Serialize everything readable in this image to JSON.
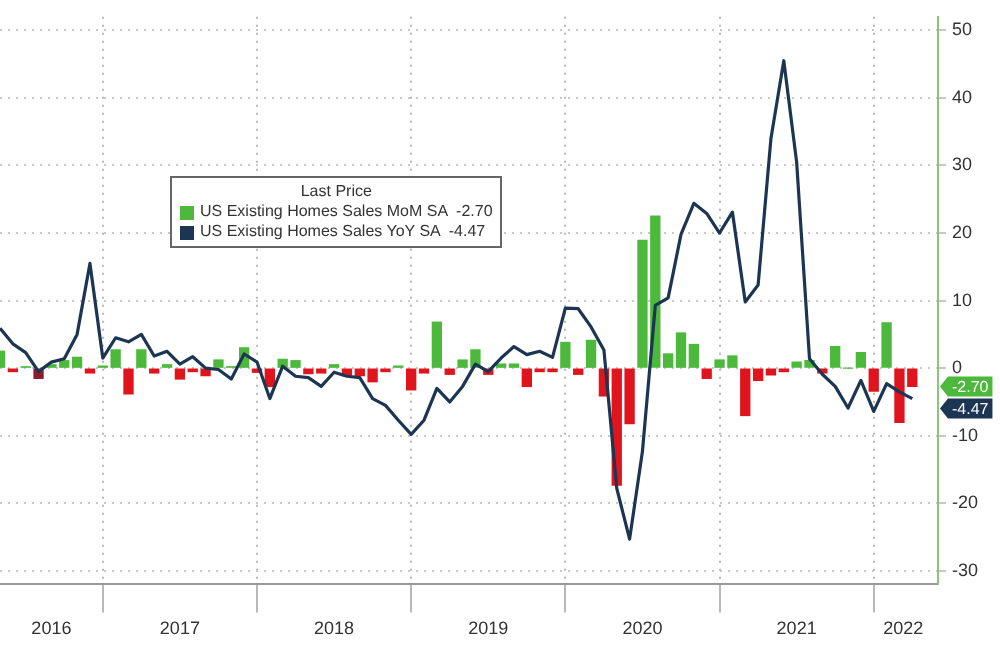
{
  "chart_data": {
    "type": "bar",
    "legend_title": "Last Price",
    "x": [
      "2016-05",
      "2016-06",
      "2016-07",
      "2016-08",
      "2016-09",
      "2016-10",
      "2016-11",
      "2016-12",
      "2017-01",
      "2017-02",
      "2017-03",
      "2017-04",
      "2017-05",
      "2017-06",
      "2017-07",
      "2017-08",
      "2017-09",
      "2017-10",
      "2017-11",
      "2017-12",
      "2018-01",
      "2018-02",
      "2018-03",
      "2018-04",
      "2018-05",
      "2018-06",
      "2018-07",
      "2018-08",
      "2018-09",
      "2018-10",
      "2018-11",
      "2018-12",
      "2019-01",
      "2019-02",
      "2019-03",
      "2019-04",
      "2019-05",
      "2019-06",
      "2019-07",
      "2019-08",
      "2019-09",
      "2019-10",
      "2019-11",
      "2019-12",
      "2020-01",
      "2020-02",
      "2020-03",
      "2020-04",
      "2020-05",
      "2020-06",
      "2020-07",
      "2020-08",
      "2020-09",
      "2020-10",
      "2020-11",
      "2020-12",
      "2021-01",
      "2021-02",
      "2021-03",
      "2021-04",
      "2021-05",
      "2021-06",
      "2021-07",
      "2021-08",
      "2021-09",
      "2021-10",
      "2021-11",
      "2021-12",
      "2022-01",
      "2022-02",
      "2022-03",
      "2022-04"
    ],
    "series": [
      {
        "name": "US Existing Homes Sales MoM SA  -2.70",
        "color": "#4cb83c",
        "colors": [
          "#4cb83c",
          "#e0141c",
          "#4cb83c",
          "#8a1c2c",
          "#4cb83c",
          "#4cb83c",
          "#4cb83c",
          "#e0141c",
          "#4cb83c",
          "#4cb83c",
          "#e0141c",
          "#4cb83c",
          "#e0141c",
          "#4cb83c",
          "#e0141c",
          "#e0141c",
          "#e0141c",
          "#4cb83c",
          "#4cb83c",
          "#4cb83c",
          "#e0141c",
          "#e0141c",
          "#4cb83c",
          "#4cb83c",
          "#e0141c",
          "#e0141c",
          "#4cb83c",
          "#e0141c",
          "#e0141c",
          "#e0141c",
          "#e0141c",
          "#4cb83c",
          "#e0141c",
          "#e0141c",
          "#4cb83c",
          "#e0141c",
          "#4cb83c",
          "#4cb83c",
          "#e0141c",
          "#4cb83c",
          "#4cb83c",
          "#e0141c",
          "#e0141c",
          "#e0141c",
          "#4cb83c",
          "#e0141c",
          "#4cb83c",
          "#e0141c",
          "#e0141c",
          "#e0141c",
          "#4cb83c",
          "#4cb83c",
          "#4cb83c",
          "#4cb83c",
          "#4cb83c",
          "#e0141c",
          "#4cb83c",
          "#4cb83c",
          "#e0141c",
          "#e0141c",
          "#e0141c",
          "#e0141c",
          "#4cb83c",
          "#4cb83c",
          "#e0141c",
          "#4cb83c",
          "#4cb83c",
          "#4cb83c",
          "#e0141c",
          "#4cb83c",
          "#e0141c",
          "#e0141c"
        ],
        "values": [
          2.5,
          -0.5,
          0.2,
          -1.5,
          0.5,
          1.1,
          1.6,
          -0.7,
          0.3,
          2.7,
          -3.8,
          2.7,
          -0.7,
          0.5,
          -1.6,
          -0.5,
          -1.1,
          1.2,
          0.2,
          3,
          -0.6,
          -2.7,
          1.3,
          1.1,
          -0.8,
          -0.7,
          0.5,
          -1.1,
          -1.1,
          -2,
          -0.5,
          0.3,
          -3.2,
          -0.7,
          6.8,
          -0.9,
          1.2,
          2.7,
          -0.9,
          0.6,
          0.6,
          -2.7,
          -0.5,
          -0.5,
          3.8,
          -0.9,
          4.1,
          -4.1,
          -17.3,
          -8.2,
          18.9,
          22.5,
          2.1,
          5.2,
          3.5,
          -1.5,
          1.2,
          1.8,
          -7,
          -1.8,
          -1,
          -0.5,
          0.9,
          1.1,
          -0.7,
          3.2,
          0,
          2.3,
          -3.4,
          6.7,
          -8,
          -2.7
        ]
      },
      {
        "type": "line",
        "name": "US Existing Homes Sales YoY SA  -4.47",
        "color": "#1c3553",
        "values": [
          5.9,
          3.6,
          2.3,
          -0.5,
          0.9,
          1.4,
          5,
          15.5,
          1.5,
          4.5,
          3.9,
          5,
          1.8,
          2.5,
          0.6,
          1.7,
          0,
          -0.2,
          -1.6,
          2.1,
          0.9,
          -4.5,
          0.3,
          -1.2,
          -1.4,
          -2.7,
          -0.6,
          -1.2,
          -1.4,
          -4.5,
          -5.5,
          -7.7,
          -9.8,
          -7.7,
          -3,
          -5,
          -2.7,
          0.6,
          -0.5,
          1.5,
          3.2,
          2,
          2.5,
          1.6,
          8.9,
          8.8,
          6.1,
          2.7,
          -17.8,
          -25.3,
          -12.3,
          9.3,
          10.4,
          19.8,
          24.4,
          22.9,
          20,
          23.1,
          9.8,
          12.3,
          34,
          45.5,
          30.5,
          1.4,
          -0.9,
          -2.7,
          -5.9,
          -1.8,
          -6.4,
          -2.3,
          -3.5,
          -4.5
        ]
      }
    ],
    "xlim": [
      "2016-05",
      "2022-06"
    ],
    "xticks": [
      {
        "value": "2016-09-01",
        "label": "2016"
      },
      {
        "value": "2017-01-01",
        "label": null
      },
      {
        "value": "2017-07-01",
        "label": "2017"
      },
      {
        "value": "2018-01-01",
        "label": null
      },
      {
        "value": "2018-07-01",
        "label": "2018"
      },
      {
        "value": "2019-01-01",
        "label": null
      },
      {
        "value": "2019-07-01",
        "label": "2019"
      },
      {
        "value": "2020-01-01",
        "label": null
      },
      {
        "value": "2020-07-01",
        "label": "2020"
      },
      {
        "value": "2021-01-01",
        "label": null
      },
      {
        "value": "2021-07-01",
        "label": "2021"
      },
      {
        "value": "2022-01-01",
        "label": null
      },
      {
        "value": "2022-03-10",
        "label": "2022"
      }
    ],
    "ylim": [
      -32,
      52
    ],
    "yticks": [
      -30,
      -20,
      -10,
      0,
      10,
      20,
      30,
      40,
      50
    ],
    "annotations": [
      "-2.70",
      "-4.47"
    ],
    "grid": true,
    "legend": "top",
    "marker": "none",
    "line_style": "solid"
  }
}
